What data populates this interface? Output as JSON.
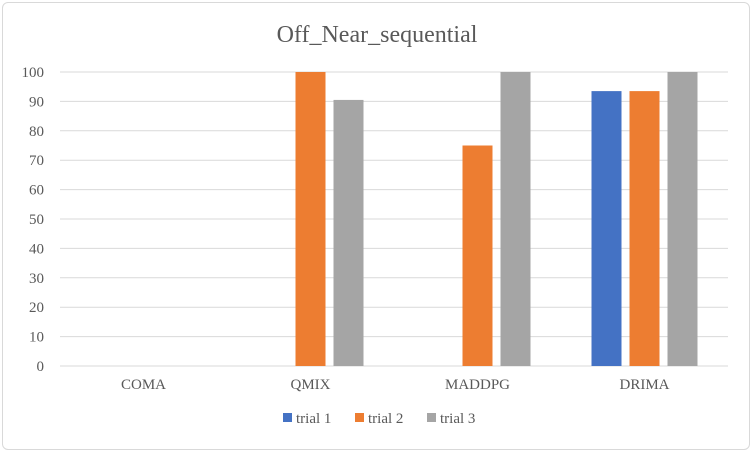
{
  "chart_data": {
    "type": "bar",
    "title": "Off_Near_sequential",
    "categories": [
      "COMA",
      "QMIX",
      "MADDPG",
      "DRIMA"
    ],
    "series": [
      {
        "name": "trial 1",
        "color": "#4472c4",
        "values": [
          0,
          0,
          0,
          93.5
        ]
      },
      {
        "name": "trial 2",
        "color": "#ed7d31",
        "values": [
          0,
          100,
          75,
          93.5
        ]
      },
      {
        "name": "trial 3",
        "color": "#a5a5a5",
        "values": [
          0,
          90.5,
          100,
          100
        ]
      }
    ],
    "ylim": [
      0,
      100
    ],
    "yticks": [
      "0",
      "10",
      "20",
      "30",
      "40",
      "50",
      "60",
      "70",
      "80",
      "90",
      "100"
    ],
    "grid": true,
    "legend_position": "bottom"
  }
}
